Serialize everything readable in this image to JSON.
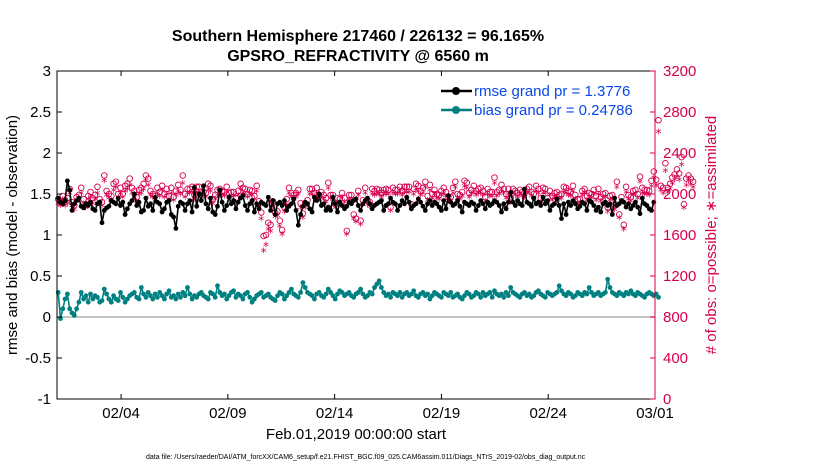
{
  "chart_data": {
    "type": "line",
    "title_line1": "Southern Hemisphere 217460 / 226132 = 96.165%",
    "title_line2": "GPSRO_REFRACTIVITY @ 6560 m",
    "xlabel": "Feb.01,2019 00:00:00 start",
    "ylabel_left": "rmse and bias (model - observation)",
    "ylabel_right": "# of obs: o=possible; ∗=assimilated",
    "footnote": "data file: /Users/raeder/DAI/ATM_forcXX/CAM6_setup/f.e21.FHIST_BGC.f09_025.CAM6assim.011/Diags_NTrS_2019-02/obs_diag_output.nc",
    "xlim": [
      0.5,
      28.5
    ],
    "ylim_left": [
      -1,
      3
    ],
    "ylim_right": [
      0,
      3200
    ],
    "x_ticks": [
      {
        "x": 3.5,
        "label": "02/04"
      },
      {
        "x": 8.5,
        "label": "02/09"
      },
      {
        "x": 13.5,
        "label": "02/14"
      },
      {
        "x": 18.5,
        "label": "02/19"
      },
      {
        "x": 23.5,
        "label": "02/24"
      },
      {
        "x": 28.5,
        "label": "03/01"
      }
    ],
    "y_ticks_left": [
      "-1",
      "-0.5",
      "0",
      "0.5",
      "1",
      "1.5",
      "2",
      "2.5",
      "3"
    ],
    "y_ticks_right": [
      "0",
      "400",
      "800",
      "1200",
      "1600",
      "2000",
      "2400",
      "2800",
      "3200"
    ],
    "legend": [
      {
        "label": "rmse grand pr = 1.3776",
        "color": "#000000"
      },
      {
        "label": "bias grand pr = 0.24786",
        "color": "#008080"
      }
    ],
    "colors": {
      "rmse": "#000000",
      "bias": "#008080",
      "obs": "#d6004f",
      "zero_line": "#b0b0b0",
      "axis": "#000000"
    },
    "series": [
      {
        "name": "rmse",
        "values": [
          1.45,
          1.4,
          1.38,
          1.42,
          1.66,
          1.55,
          1.3,
          1.38,
          1.42,
          1.45,
          1.35,
          1.33,
          1.38,
          1.36,
          1.4,
          1.32,
          1.3,
          1.38,
          1.4,
          1.15,
          1.3,
          1.33,
          1.35,
          1.42,
          1.4,
          1.38,
          1.45,
          1.36,
          1.4,
          1.25,
          1.32,
          1.38,
          1.42,
          1.5,
          1.36,
          1.4,
          1.28,
          1.3,
          1.45,
          1.35,
          1.38,
          1.3,
          1.46,
          1.4,
          1.38,
          1.28,
          1.32,
          1.4,
          1.42,
          1.25,
          1.22,
          1.08,
          1.35,
          1.4,
          1.38,
          1.3,
          1.38,
          1.42,
          1.28,
          1.58,
          1.35,
          1.5,
          1.42,
          1.6,
          1.38,
          1.32,
          1.45,
          1.28,
          1.25,
          1.35,
          1.55,
          1.4,
          1.3,
          1.36,
          1.46,
          1.38,
          1.42,
          1.32,
          1.4,
          1.45,
          1.48,
          1.36,
          1.3,
          1.38,
          1.42,
          1.28,
          1.38,
          1.32,
          1.4,
          1.38,
          1.36,
          1.46,
          1.3,
          1.42,
          1.25,
          1.38,
          1.4,
          1.36,
          1.42,
          1.3,
          1.35,
          1.38,
          1.44,
          1.3,
          1.12,
          1.25,
          1.35,
          1.4,
          1.38,
          1.32,
          1.28,
          1.46,
          1.42,
          1.5,
          1.36,
          1.38,
          1.3,
          1.34,
          1.3,
          1.46,
          1.38,
          1.28,
          1.4,
          1.36,
          1.32,
          1.35,
          1.4,
          1.38,
          1.42,
          1.44,
          1.36,
          1.3,
          1.38,
          1.42,
          1.45,
          1.38,
          1.32,
          1.36,
          1.38,
          1.4,
          1.42,
          1.3,
          1.36,
          1.38,
          1.45,
          1.4,
          1.38,
          1.3,
          1.36,
          1.42,
          1.38,
          1.46,
          1.4,
          1.32,
          1.36,
          1.38,
          1.44,
          1.4,
          1.35,
          1.3,
          1.38,
          1.42,
          1.36,
          1.4,
          1.38,
          1.34,
          1.3,
          1.42,
          1.32,
          1.48,
          1.4,
          1.36,
          1.38,
          1.42,
          1.35,
          1.28,
          1.4,
          1.38,
          1.36,
          1.4,
          1.38,
          1.3,
          1.36,
          1.42,
          1.38,
          1.32,
          1.4,
          1.36,
          1.38,
          1.42,
          1.4,
          1.36,
          1.28,
          1.38,
          1.32,
          1.4,
          1.52,
          1.4,
          1.36,
          1.42,
          1.38,
          1.36,
          1.56,
          1.4,
          1.38,
          1.35,
          1.45,
          1.38,
          1.4,
          1.36,
          1.46,
          1.38,
          1.42,
          1.3,
          1.36,
          1.38,
          1.44,
          1.36,
          1.2,
          1.38,
          1.25,
          1.4,
          1.36,
          1.42,
          1.38,
          1.32,
          1.35,
          1.4,
          1.38,
          1.3,
          1.42,
          1.4,
          1.36,
          1.3,
          1.34,
          1.28,
          1.38,
          1.4,
          1.36,
          1.38,
          1.25,
          1.45,
          1.36,
          1.38,
          1.42,
          1.4,
          1.34,
          1.38,
          1.32,
          1.36,
          1.4,
          1.34,
          1.26,
          1.45,
          1.38,
          1.36,
          1.32,
          1.3,
          1.4
        ]
      },
      {
        "name": "bias",
        "values": [
          0.3,
          -0.02,
          0.1,
          0.22,
          0.28,
          0.1,
          0.05,
          0.02,
          0.1,
          0.18,
          0.3,
          0.22,
          0.26,
          0.18,
          0.28,
          0.22,
          0.26,
          0.24,
          0.18,
          0.2,
          0.34,
          0.28,
          0.22,
          0.18,
          0.26,
          0.22,
          0.2,
          0.3,
          0.24,
          0.18,
          0.22,
          0.26,
          0.28,
          0.3,
          0.24,
          0.22,
          0.36,
          0.28,
          0.24,
          0.3,
          0.26,
          0.22,
          0.28,
          0.24,
          0.3,
          0.26,
          0.22,
          0.28,
          0.32,
          0.24,
          0.26,
          0.22,
          0.28,
          0.24,
          0.3,
          0.26,
          0.36,
          0.28,
          0.22,
          0.26,
          0.24,
          0.28,
          0.3,
          0.26,
          0.24,
          0.22,
          0.3,
          0.28,
          0.24,
          0.38,
          0.3,
          0.26,
          0.28,
          0.22,
          0.26,
          0.3,
          0.32,
          0.24,
          0.28,
          0.26,
          0.22,
          0.28,
          0.3,
          0.24,
          0.18,
          0.22,
          0.26,
          0.28,
          0.3,
          0.24,
          0.26,
          0.28,
          0.24,
          0.22,
          0.2,
          0.26,
          0.3,
          0.28,
          0.22,
          0.26,
          0.3,
          0.34,
          0.28,
          0.26,
          0.24,
          0.3,
          0.42,
          0.36,
          0.3,
          0.28,
          0.26,
          0.22,
          0.28,
          0.3,
          0.26,
          0.24,
          0.28,
          0.34,
          0.3,
          0.26,
          0.22,
          0.28,
          0.32,
          0.3,
          0.26,
          0.28,
          0.3,
          0.26,
          0.24,
          0.28,
          0.3,
          0.34,
          0.28,
          0.24,
          0.26,
          0.3,
          0.28,
          0.36,
          0.4,
          0.44,
          0.36,
          0.3,
          0.26,
          0.28,
          0.24,
          0.3,
          0.28,
          0.26,
          0.3,
          0.24,
          0.28,
          0.3,
          0.26,
          0.28,
          0.32,
          0.26,
          0.24,
          0.28,
          0.3,
          0.26,
          0.28,
          0.22,
          0.26,
          0.3,
          0.28,
          0.26,
          0.24,
          0.3,
          0.28,
          0.26,
          0.3,
          0.24,
          0.26,
          0.28,
          0.24,
          0.22,
          0.26,
          0.3,
          0.28,
          0.24,
          0.26,
          0.3,
          0.28,
          0.24,
          0.3,
          0.26,
          0.28,
          0.3,
          0.24,
          0.32,
          0.28,
          0.26,
          0.28,
          0.24,
          0.3,
          0.26,
          0.36,
          0.3,
          0.28,
          0.26,
          0.24,
          0.28,
          0.3,
          0.26,
          0.28,
          0.24,
          0.26,
          0.3,
          0.32,
          0.28,
          0.26,
          0.24,
          0.3,
          0.28,
          0.26,
          0.28,
          0.3,
          0.38,
          0.32,
          0.28,
          0.26,
          0.3,
          0.28,
          0.24,
          0.26,
          0.3,
          0.28,
          0.26,
          0.3,
          0.28,
          0.36,
          0.3,
          0.26,
          0.28,
          0.3,
          0.26,
          0.28,
          0.3,
          0.46,
          0.36,
          0.3,
          0.28,
          0.26,
          0.3,
          0.28,
          0.26,
          0.3,
          0.28,
          0.32,
          0.28,
          0.26,
          0.3,
          0.28,
          0.26,
          0.24,
          0.28,
          0.3,
          0.28,
          0.26,
          0.28,
          0.24
        ]
      },
      {
        "name": "obs_possible",
        "values": [
          1950,
          1920,
          1980,
          1940,
          1960,
          2050,
          1920,
          1890,
          1970,
          1990,
          2060,
          1950,
          1900,
          1980,
          2020,
          1960,
          1990,
          2070,
          1950,
          1920,
          2180,
          2030,
          2000,
          1980,
          2100,
          2120,
          2000,
          2060,
          2000,
          2080,
          2100,
          2150,
          2060,
          2030,
          1970,
          2040,
          2060,
          2100,
          2180,
          2150,
          2030,
          2000,
          1980,
          2060,
          2020,
          2080,
          2000,
          2050,
          1980,
          2060,
          1970,
          2030,
          2090,
          2040,
          2180,
          2000,
          2050,
          2050,
          2070,
          1990,
          2070,
          2070,
          2020,
          2020,
          2010,
          2100,
          2080,
          1950,
          1990,
          2040,
          2050,
          2030,
          2020,
          2070,
          2010,
          2020,
          2020,
          1960,
          2030,
          2100,
          2060,
          2050,
          2000,
          2040,
          2030,
          1980,
          2080,
          1930,
          1820,
          1590,
          1600,
          1720,
          1700,
          1930,
          1820,
          1830,
          1740,
          1650,
          1870,
          1950,
          2060,
          2010,
          1990,
          2010,
          2040,
          1910,
          1810,
          1910,
          1940,
          2050,
          2050,
          2010,
          2060,
          1990,
          2020,
          1990,
          1960,
          2110,
          1990,
          1990,
          1900,
          1960,
          1950,
          2010,
          1960,
          1640,
          1990,
          1990,
          1800,
          1760,
          2030,
          1740,
          1940,
          2060,
          1940,
          1920,
          2050,
          2030,
          2050,
          2040,
          2010,
          2040,
          2050,
          2040,
          1870,
          2060,
          2040,
          2040,
          2070,
          2030,
          2070,
          2070,
          2070,
          1900,
          2050,
          2100,
          2080,
          2030,
          2060,
          2120,
          1980,
          2090,
          2000,
          2040,
          2000,
          1990,
          2030,
          2060,
          2020,
          1970,
          1970,
          2060,
          2120,
          2000,
          1990,
          2020,
          2130,
          2110,
          2010,
          2040,
          2080,
          2030,
          2050,
          2060,
          2030,
          1970,
          2050,
          2020,
          2020,
          2160,
          2020,
          2040,
          2090,
          2050,
          2000,
          2050,
          1960,
          2050,
          2030,
          2010,
          2040,
          2020,
          2010,
          2050,
          2070,
          2020,
          2000,
          2080,
          2050,
          1960,
          2060,
          2050,
          1960,
          2030,
          1980,
          2010,
          2020,
          1990,
          2000,
          2070,
          2060,
          2030,
          2020,
          2080,
          1990,
          1950,
          1950,
          2030,
          2050,
          1980,
          2010,
          2000,
          2040,
          1980,
          2050,
          1970,
          2000,
          2010,
          1870,
          1980,
          1990,
          1890,
          2120,
          1800,
          1970,
          1700,
          2070,
          1990,
          1970,
          2030,
          2040,
          2000,
          2170,
          2060,
          2040,
          2040,
          2030,
          2130,
          2220,
          2140,
          2720,
          2080,
          2060,
          2300,
          2060,
          2100,
          2160,
          2190,
          2240,
          2200,
          2360,
          1900,
          2150,
          2180,
          2150,
          2120
        ]
      },
      {
        "name": "obs_assimilated",
        "values": [
          1900,
          1880,
          1940,
          1880,
          1900,
          2000,
          1880,
          1840,
          1920,
          1940,
          2000,
          1900,
          1860,
          1940,
          1960,
          1900,
          1940,
          2000,
          1900,
          1880,
          2120,
          1980,
          1950,
          1930,
          2030,
          2060,
          1960,
          2000,
          1960,
          2020,
          2040,
          2080,
          2000,
          1980,
          1920,
          1990,
          2000,
          2040,
          2120,
          2080,
          1980,
          1960,
          1930,
          2000,
          1970,
          2030,
          1960,
          1990,
          1940,
          2000,
          1930,
          1980,
          2020,
          1990,
          2100,
          1960,
          2000,
          2000,
          2010,
          1940,
          2010,
          2010,
          1980,
          1970,
          1960,
          2040,
          2020,
          1900,
          1940,
          1980,
          2000,
          1980,
          1970,
          2010,
          1960,
          1970,
          1970,
          1910,
          1980,
          2040,
          2000,
          1990,
          1960,
          1990,
          1980,
          1940,
          2020,
          1880,
          1750,
          1440,
          1500,
          1650,
          1630,
          1870,
          1770,
          1780,
          1680,
          1600,
          1820,
          1890,
          2000,
          1960,
          1940,
          1960,
          1990,
          1860,
          1760,
          1860,
          1890,
          1990,
          1990,
          1960,
          2000,
          1940,
          1970,
          1940,
          1910,
          2050,
          1950,
          1950,
          1860,
          1910,
          1900,
          1960,
          1910,
          1600,
          1940,
          1940,
          1750,
          1720,
          1980,
          1700,
          1890,
          2000,
          1890,
          1870,
          1990,
          1980,
          1990,
          1990,
          1960,
          1990,
          1990,
          1990,
          1830,
          2000,
          1990,
          1990,
          2010,
          1980,
          2010,
          2010,
          2010,
          1850,
          1990,
          2040,
          2020,
          1980,
          2000,
          2060,
          1930,
          2030,
          1950,
          1990,
          1950,
          1940,
          1980,
          2000,
          1970,
          1920,
          1920,
          2000,
          2060,
          1950,
          1940,
          1970,
          2070,
          2050,
          1960,
          1990,
          2020,
          1980,
          2000,
          2000,
          1980,
          1920,
          1990,
          1970,
          1970,
          2100,
          1970,
          1990,
          2030,
          2000,
          1950,
          1990,
          1910,
          2000,
          1980,
          1960,
          1990,
          1970,
          1960,
          2000,
          2010,
          1970,
          1950,
          2020,
          2000,
          1910,
          2000,
          2000,
          1910,
          1980,
          1930,
          1960,
          1970,
          1940,
          1950,
          2010,
          2000,
          1980,
          1970,
          2020,
          1940,
          1900,
          1900,
          1980,
          2000,
          1930,
          1960,
          1950,
          1990,
          1930,
          1990,
          1920,
          1950,
          1960,
          1820,
          1930,
          1940,
          1840,
          2060,
          1760,
          1920,
          1650,
          2010,
          1940,
          1920,
          1980,
          1990,
          1950,
          2110,
          2000,
          1990,
          1990,
          1980,
          2070,
          2150,
          2080,
          2600,
          2030,
          2000,
          2220,
          2010,
          2040,
          2100,
          2130,
          2160,
          2130,
          2280,
          1860,
          2080,
          2120,
          2090,
          2060
        ]
      }
    ]
  }
}
